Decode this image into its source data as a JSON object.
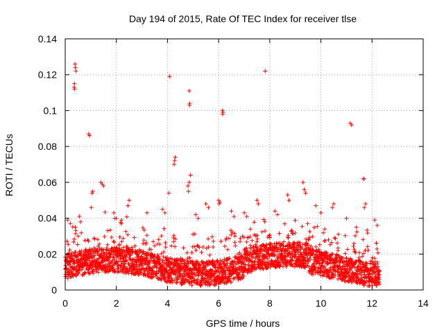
{
  "chart_data": {
    "type": "scatter",
    "title": "Day 194 of 2015, Rate Of TEC Index for receiver tlse",
    "xlabel": "GPS time / hours",
    "ylabel": "ROTI / TECUs",
    "xlim": [
      0,
      14
    ],
    "ylim": [
      0,
      0.14
    ],
    "xticks": [
      0,
      2,
      4,
      6,
      8,
      10,
      12,
      14
    ],
    "yticks": [
      0,
      0.02,
      0.04,
      0.06,
      0.08,
      0.1,
      0.12,
      0.14
    ],
    "xtick_labels": [
      "0",
      "2",
      "4",
      "6",
      "8",
      "10",
      "12",
      "14"
    ],
    "ytick_labels": [
      "0",
      "0.02",
      "0.04",
      "0.06",
      "0.08",
      "0.1",
      "0.12",
      "0.14"
    ],
    "grid": true,
    "marker": "+",
    "color": "#ff0000",
    "x_data_range": [
      0,
      12.3
    ],
    "series": [
      {
        "name": "ROTI",
        "points": [
          [
            0.38,
            0.126
          ],
          [
            0.4,
            0.124
          ],
          [
            0.42,
            0.122
          ],
          [
            0.36,
            0.115
          ],
          [
            0.35,
            0.113
          ],
          [
            0.37,
            0.112
          ],
          [
            0.92,
            0.087
          ],
          [
            0.95,
            0.086
          ],
          [
            1.4,
            0.06
          ],
          [
            1.45,
            0.059
          ],
          [
            1.5,
            0.058
          ],
          [
            1.08,
            0.055
          ],
          [
            1.05,
            0.054
          ],
          [
            1.02,
            0.046
          ],
          [
            4.08,
            0.119
          ],
          [
            4.3,
            0.074
          ],
          [
            4.28,
            0.072
          ],
          [
            4.26,
            0.07
          ],
          [
            4.05,
            0.054
          ],
          [
            4.85,
            0.111
          ],
          [
            4.87,
            0.104
          ],
          [
            4.86,
            0.103
          ],
          [
            4.9,
            0.064
          ],
          [
            4.85,
            0.06
          ],
          [
            4.8,
            0.058
          ],
          [
            4.82,
            0.055
          ],
          [
            6.15,
            0.1
          ],
          [
            6.17,
            0.099
          ],
          [
            6.16,
            0.098
          ],
          [
            6.0,
            0.05
          ],
          [
            6.05,
            0.049
          ],
          [
            6.02,
            0.048
          ],
          [
            7.82,
            0.122
          ],
          [
            7.5,
            0.05
          ],
          [
            7.55,
            0.048
          ],
          [
            11.15,
            0.093
          ],
          [
            11.2,
            0.092
          ],
          [
            11.65,
            0.062
          ],
          [
            11.7,
            0.062
          ],
          [
            11.75,
            0.048
          ],
          [
            11.7,
            0.046
          ],
          [
            9.3,
            0.06
          ],
          [
            9.35,
            0.056
          ],
          [
            9.4,
            0.054
          ],
          [
            8.7,
            0.053
          ],
          [
            8.75,
            0.05
          ],
          [
            10.5,
            0.048
          ],
          [
            10.45,
            0.046
          ],
          [
            2.5,
            0.05
          ],
          [
            2.45,
            0.047
          ],
          [
            3.2,
            0.043
          ],
          [
            5.5,
            0.048
          ],
          [
            5.6,
            0.046
          ],
          [
            3.8,
            0.045
          ],
          [
            3.9,
            0.043
          ],
          [
            0.1,
            0.039
          ],
          [
            0.2,
            0.037
          ],
          [
            0.55,
            0.041
          ],
          [
            0.6,
            0.038
          ],
          [
            1.9,
            0.043
          ],
          [
            2.0,
            0.04
          ],
          [
            2.2,
            0.039
          ],
          [
            7.0,
            0.043
          ],
          [
            7.1,
            0.041
          ],
          [
            8.2,
            0.044
          ],
          [
            8.3,
            0.042
          ],
          [
            9.8,
            0.047
          ],
          [
            10.0,
            0.043
          ],
          [
            11.0,
            0.04
          ],
          [
            12.1,
            0.039
          ],
          [
            12.2,
            0.036
          ],
          [
            5.1,
            0.042
          ],
          [
            5.2,
            0.04
          ],
          [
            6.5,
            0.044
          ],
          [
            6.6,
            0.041
          ]
        ]
      }
    ]
  }
}
